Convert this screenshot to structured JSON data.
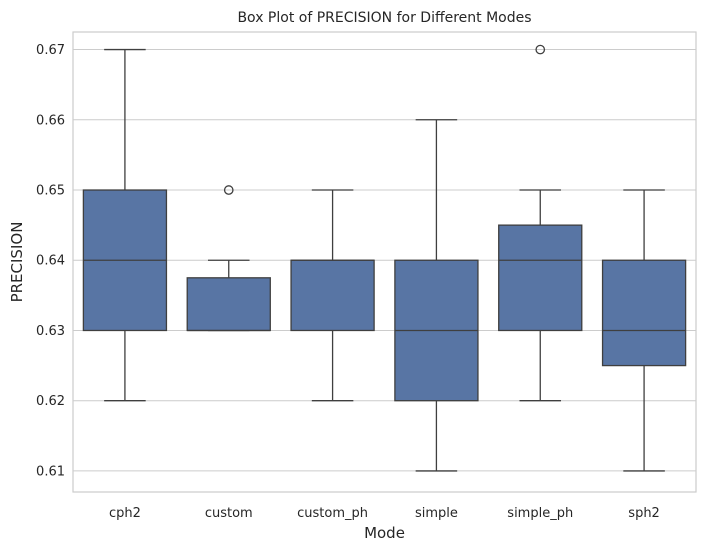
{
  "chart_data": {
    "type": "box",
    "title": "Box Plot of PRECISION for Different Modes",
    "xlabel": "Mode",
    "ylabel": "PRECISION",
    "ylim": [
      0.607,
      0.6725
    ],
    "yticks": [
      "0.61",
      "0.62",
      "0.63",
      "0.64",
      "0.65",
      "0.66",
      "0.67"
    ],
    "grid": true,
    "box_color": "#5875a4",
    "line_color": "#3f3f3f",
    "grid_color": "#cccccc",
    "categories": [
      "cph2",
      "custom",
      "custom_ph",
      "simple",
      "simple_ph",
      "sph2"
    ],
    "boxes": [
      {
        "whisker_low": 0.62,
        "q1": 0.63,
        "median": 0.64,
        "q3": 0.65,
        "whisker_high": 0.67,
        "outliers": []
      },
      {
        "whisker_low": 0.63,
        "q1": 0.63,
        "median": 0.63,
        "q3": 0.6375,
        "whisker_high": 0.64,
        "outliers": [
          0.65
        ]
      },
      {
        "whisker_low": 0.62,
        "q1": 0.63,
        "median": 0.64,
        "q3": 0.64,
        "whisker_high": 0.65,
        "outliers": []
      },
      {
        "whisker_low": 0.61,
        "q1": 0.62,
        "median": 0.63,
        "q3": 0.64,
        "whisker_high": 0.66,
        "outliers": []
      },
      {
        "whisker_low": 0.62,
        "q1": 0.63,
        "median": 0.64,
        "q3": 0.645,
        "whisker_high": 0.65,
        "outliers": [
          0.67
        ]
      },
      {
        "whisker_low": 0.61,
        "q1": 0.625,
        "median": 0.63,
        "q3": 0.64,
        "whisker_high": 0.65,
        "outliers": []
      }
    ]
  }
}
